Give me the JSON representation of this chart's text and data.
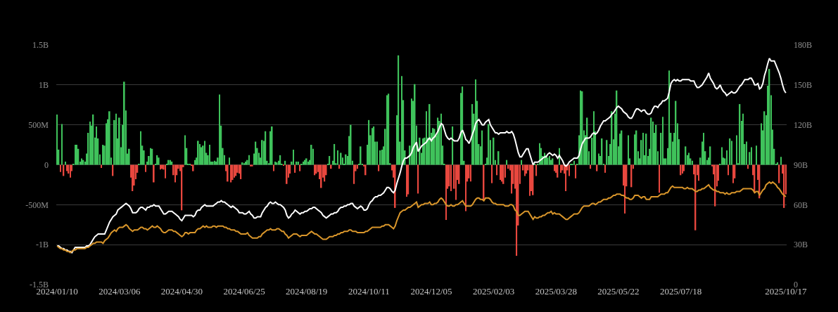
{
  "chart_data": {
    "type": "bar",
    "categories": [
      "2024/01/10",
      null,
      null,
      null,
      null,
      null,
      null,
      null,
      null,
      null,
      null,
      null,
      null,
      null,
      null,
      null,
      null,
      null,
      null,
      null,
      null,
      null,
      null,
      null,
      null,
      null,
      null,
      null,
      null,
      null,
      null,
      null,
      null,
      null,
      null,
      null,
      null,
      null,
      "2024/03/06",
      null,
      null,
      null,
      null,
      null,
      null,
      null,
      null,
      null,
      null,
      null,
      null,
      null,
      null,
      null,
      null,
      null,
      null,
      null,
      null,
      null,
      null,
      null,
      null,
      null,
      null,
      null,
      null,
      null,
      null,
      null,
      null,
      null,
      null,
      null,
      null,
      null,
      "2024/04/30",
      null,
      null,
      null,
      null,
      null,
      null,
      null,
      null,
      null,
      null,
      null,
      null,
      null,
      null,
      null,
      null,
      null,
      null,
      null,
      null,
      null,
      null,
      null,
      null,
      null,
      null,
      null,
      null,
      null,
      null,
      null,
      null,
      null,
      null,
      null,
      null,
      null,
      "2024/06/25",
      null,
      null,
      null,
      null,
      null,
      null,
      null,
      null,
      null,
      null,
      null,
      null,
      null,
      null,
      null,
      null,
      null,
      null,
      null,
      null,
      null,
      null,
      null,
      null,
      null,
      null,
      null,
      null,
      null,
      null,
      null,
      null,
      null,
      null,
      null,
      null,
      null,
      "2024/08/19",
      null,
      null,
      null,
      null,
      null,
      null,
      null,
      null,
      null,
      null,
      null,
      null,
      null,
      null,
      null,
      null,
      null,
      null,
      null,
      null,
      null,
      null,
      null,
      null,
      null,
      null,
      null,
      null,
      null,
      null,
      null,
      null,
      null,
      null,
      null,
      null,
      null,
      "2024/10/11",
      null,
      null,
      null,
      null,
      null,
      null,
      null,
      null,
      null,
      null,
      null,
      null,
      null,
      null,
      null,
      null,
      null,
      null,
      null,
      null,
      null,
      null,
      null,
      null,
      null,
      null,
      null,
      null,
      null,
      null,
      null,
      null,
      null,
      null,
      null,
      null,
      null,
      "2024/12/05",
      null,
      null,
      null,
      null,
      null,
      null,
      null,
      null,
      null,
      null,
      null,
      null,
      null,
      null,
      null,
      null,
      null,
      null,
      null,
      null,
      null,
      null,
      null,
      null,
      null,
      null,
      null,
      null,
      null,
      null,
      null,
      null,
      null,
      null,
      null,
      null,
      null,
      "2025/02/03",
      null,
      null,
      null,
      null,
      null,
      null,
      null,
      null,
      null,
      null,
      null,
      null,
      null,
      null,
      null,
      null,
      null,
      null,
      null,
      null,
      null,
      null,
      null,
      null,
      null,
      null,
      null,
      null,
      null,
      null,
      null,
      null,
      null,
      null,
      null,
      null,
      null,
      "2025/03/28",
      null,
      null,
      null,
      null,
      null,
      null,
      null,
      null,
      null,
      null,
      null,
      null,
      null,
      null,
      null,
      null,
      null,
      null,
      null,
      null,
      null,
      null,
      null,
      null,
      null,
      null,
      null,
      null,
      null,
      null,
      null,
      null,
      null,
      null,
      null,
      null,
      null,
      "2025/05/22",
      null,
      null,
      null,
      null,
      null,
      null,
      null,
      null,
      null,
      null,
      null,
      null,
      null,
      null,
      null,
      null,
      null,
      null,
      null,
      null,
      null,
      null,
      null,
      null,
      null,
      null,
      null,
      null,
      null,
      null,
      null,
      null,
      null,
      null,
      null,
      null,
      null,
      "2025/07/18",
      null,
      null,
      null,
      null,
      null,
      null,
      null,
      null,
      null,
      null,
      null,
      null,
      null,
      null,
      null,
      null,
      null,
      null,
      null,
      null,
      null,
      null,
      null,
      null,
      null,
      null,
      null,
      null,
      null,
      null,
      null,
      null,
      null,
      null,
      null,
      null,
      null,
      null,
      null,
      null,
      null,
      null,
      null,
      null,
      null,
      null,
      null,
      null,
      null,
      null,
      null,
      null,
      null,
      null,
      null,
      null,
      null,
      null,
      null,
      null,
      null,
      null,
      null,
      "2025/10/17"
    ],
    "series": [
      {
        "values": [
          630000000,
          190000000,
          -90000000,
          510000000,
          -140000000,
          40000000,
          -80000000,
          -110000000,
          -160000000,
          -80000000,
          10000000,
          250000000,
          250000000,
          200000000,
          40000000,
          80000000,
          60000000,
          40000000,
          140000000,
          400000000,
          540000000,
          490000000,
          630000000,
          340000000,
          480000000,
          330000000,
          130000000,
          -40000000,
          250000000,
          240000000,
          520000000,
          570000000,
          670000000,
          90000000,
          -140000000,
          560000000,
          640000000,
          330000000,
          590000000,
          220000000,
          500000000,
          1040000000,
          680000000,
          140000000,
          200000000,
          -160000000,
          -330000000,
          -260000000,
          -180000000,
          -100000000,
          10000000,
          420000000,
          240000000,
          180000000,
          -90000000,
          40000000,
          110000000,
          210000000,
          200000000,
          -220000000,
          10000000,
          120000000,
          90000000,
          -60000000,
          -50000000,
          -60000000,
          -170000000,
          10000000,
          60000000,
          60000000,
          40000000,
          -130000000,
          -220000000,
          -130000000,
          -50000000,
          -80000000,
          -570000000,
          -30000000,
          370000000,
          210000000,
          10000000,
          10000000,
          -10000000,
          -80000000,
          60000000,
          90000000,
          300000000,
          260000000,
          220000000,
          240000000,
          300000000,
          150000000,
          120000000,
          250000000,
          40000000,
          40000000,
          50000000,
          40000000,
          90000000,
          880000000,
          490000000,
          210000000,
          120000000,
          -80000000,
          -210000000,
          90000000,
          -220000000,
          -190000000,
          -160000000,
          -140000000,
          -100000000,
          -110000000,
          -180000000,
          30000000,
          20000000,
          40000000,
          60000000,
          120000000,
          -20000000,
          -20000000,
          140000000,
          290000000,
          210000000,
          150000000,
          90000000,
          310000000,
          300000000,
          420000000,
          50000000,
          20000000,
          420000000,
          480000000,
          -80000000,
          40000000,
          30000000,
          50000000,
          120000000,
          10000000,
          -10000000,
          50000000,
          -240000000,
          -160000000,
          -110000000,
          40000000,
          190000000,
          -100000000,
          40000000,
          40000000,
          -80000000,
          10000000,
          40000000,
          60000000,
          80000000,
          40000000,
          60000000,
          250000000,
          200000000,
          -130000000,
          -110000000,
          -90000000,
          -180000000,
          -290000000,
          -160000000,
          -210000000,
          -130000000,
          10000000,
          110000000,
          -50000000,
          50000000,
          260000000,
          20000000,
          180000000,
          -50000000,
          150000000,
          90000000,
          10000000,
          130000000,
          110000000,
          360000000,
          500000000,
          50000000,
          -240000000,
          -80000000,
          -50000000,
          10000000,
          230000000,
          10000000,
          -20000000,
          -130000000,
          250000000,
          560000000,
          370000000,
          460000000,
          480000000,
          290000000,
          290000000,
          -80000000,
          180000000,
          190000000,
          230000000,
          450000000,
          870000000,
          890000000,
          20000000,
          -70000000,
          -160000000,
          -540000000,
          620000000,
          1370000000,
          290000000,
          1110000000,
          810000000,
          180000000,
          -400000000,
          -370000000,
          240000000,
          830000000,
          800000000,
          1010000000,
          490000000,
          -360000000,
          340000000,
          150000000,
          330000000,
          340000000,
          670000000,
          340000000,
          760000000,
          400000000,
          460000000,
          450000000,
          370000000,
          590000000,
          550000000,
          640000000,
          240000000,
          10000000,
          -690000000,
          -300000000,
          -270000000,
          -330000000,
          480000000,
          -300000000,
          -440000000,
          -190000000,
          -240000000,
          900000000,
          980000000,
          50000000,
          -580000000,
          -210000000,
          -170000000,
          -210000000,
          760000000,
          640000000,
          1070000000,
          800000000,
          260000000,
          230000000,
          430000000,
          -450000000,
          10000000,
          90000000,
          510000000,
          310000000,
          -230000000,
          340000000,
          60000000,
          -130000000,
          170000000,
          -190000000,
          -210000000,
          -240000000,
          -160000000,
          60000000,
          -50000000,
          -70000000,
          -360000000,
          -240000000,
          -300000000,
          -1140000000,
          -760000000,
          -240000000,
          60000000,
          -70000000,
          -140000000,
          -110000000,
          -70000000,
          -390000000,
          -330000000,
          -380000000,
          10000000,
          -140000000,
          10000000,
          270000000,
          210000000,
          110000000,
          150000000,
          120000000,
          90000000,
          110000000,
          60000000,
          80000000,
          -80000000,
          -100000000,
          -160000000,
          210000000,
          -100000000,
          -70000000,
          -110000000,
          -330000000,
          -70000000,
          -140000000,
          10000000,
          10000000,
          50000000,
          -170000000,
          10000000,
          370000000,
          930000000,
          920000000,
          430000000,
          370000000,
          590000000,
          170000000,
          -50000000,
          340000000,
          670000000,
          420000000,
          -80000000,
          140000000,
          110000000,
          330000000,
          10000000,
          -100000000,
          310000000,
          110000000,
          260000000,
          670000000,
          320000000,
          640000000,
          930000000,
          230000000,
          390000000,
          430000000,
          -260000000,
          -610000000,
          -270000000,
          370000000,
          80000000,
          -280000000,
          -50000000,
          380000000,
          430000000,
          170000000,
          80000000,
          310000000,
          400000000,
          120000000,
          390000000,
          110000000,
          200000000,
          590000000,
          540000000,
          400000000,
          500000000,
          170000000,
          -350000000,
          400000000,
          600000000,
          80000000,
          80000000,
          210000000,
          1180000000,
          400000000,
          290000000,
          400000000,
          800000000,
          520000000,
          320000000,
          -130000000,
          -110000000,
          -80000000,
          230000000,
          120000000,
          150000000,
          80000000,
          50000000,
          -120000000,
          -820000000,
          -130000000,
          -200000000,
          90000000,
          290000000,
          400000000,
          170000000,
          60000000,
          90000000,
          230000000,
          -20000000,
          -120000000,
          -520000000,
          -270000000,
          -200000000,
          10000000,
          220000000,
          90000000,
          80000000,
          180000000,
          -130000000,
          330000000,
          300000000,
          -230000000,
          -170000000,
          370000000,
          20000000,
          760000000,
          550000000,
          640000000,
          260000000,
          290000000,
          -50000000,
          160000000,
          220000000,
          -130000000,
          -350000000,
          240000000,
          -190000000,
          -420000000,
          520000000,
          430000000,
          670000000,
          620000000,
          990000000,
          1200000000,
          870000000,
          440000000,
          200000000,
          10000000,
          30000000,
          -230000000,
          100000000,
          -110000000,
          -540000000,
          -370000000
        ],
        "colors": [
          "#3fc25b",
          "#3fc25b",
          "#e8473e",
          "#3fc25b",
          "#e8473e",
          "#3fc25b",
          "#e8473e",
          "#e8473e",
          "#e8473e",
          "#e8473e",
          "#3fc25b",
          "#3fc25b",
          "#3fc25b",
          "#3fc25b",
          "#3fc25b",
          "#3fc25b",
          "#3fc25b",
          "#3fc25b",
          "#3fc25b",
          "#3fc25b",
          "#3fc25b",
          "#3fc25b",
          "#3fc25b",
          "#3fc25b",
          "#3fc25b",
          "#3fc25b",
          "#3fc25b",
          "#e8473e",
          "#3fc25b",
          "#3fc25b",
          "#3fc25b",
          "#3fc25b",
          "#3fc25b",
          "#3fc25b",
          "#e8473e",
          "#3fc25b",
          "#3fc25b",
          "#3fc25b",
          "#3fc25b",
          "#3fc25b",
          "#3fc25b",
          "#3fc25b",
          "#3fc25b",
          "#3fc25b",
          "#3fc25b",
          "#e8473e",
          "#e8473e",
          "#e8473e",
          "#e8473e",
          "#e8473e",
          "#3fc25b",
          "#3fc25b",
          "#3fc25b",
          "#3fc25b",
          "#e8473e",
          "#3fc25b",
          "#3fc25b",
          "#3fc25b",
          "#3fc25b",
          "#e8473e",
          "#3fc25b",
          "#3fc25b",
          "#3fc25b",
          "#e8473e",
          "#e8473e",
          "#e8473e",
          "#e8473e",
          "#3fc25b",
          "#3fc25b",
          "#3fc25b",
          "#3fc25b",
          "#e8473e",
          "#e8473e",
          "#e8473e",
          "#e8473e",
          "#e8473e",
          "#e8473e",
          "#e8473e",
          "#3fc25b",
          "#3fc25b",
          "#3fc25b",
          "#3fc25b",
          "#e8473e",
          "#e8473e",
          "#3fc25b",
          "#3fc25b",
          "#3fc25b",
          "#3fc25b",
          "#3fc25b",
          "#3fc25b",
          "#3fc25b",
          "#3fc25b",
          "#3fc25b",
          "#3fc25b",
          "#3fc25b",
          "#3fc25b",
          "#3fc25b",
          "#3fc25b",
          "#3fc25b",
          "#3fc25b",
          "#3fc25b",
          "#3fc25b",
          "#3fc25b",
          "#e8473e",
          "#e8473e",
          "#3fc25b",
          "#e8473e",
          "#e8473e",
          "#e8473e",
          "#e8473e",
          "#e8473e",
          "#e8473e",
          "#e8473e",
          "#3fc25b",
          "#3fc25b",
          "#3fc25b",
          "#3fc25b",
          "#3fc25b",
          "#e8473e",
          "#e8473e",
          "#3fc25b",
          "#3fc25b",
          "#3fc25b",
          "#3fc25b",
          "#3fc25b",
          "#3fc25b",
          "#3fc25b",
          "#3fc25b",
          "#3fc25b",
          "#3fc25b",
          "#3fc25b",
          "#3fc25b",
          "#e8473e",
          "#3fc25b",
          "#3fc25b",
          "#3fc25b",
          "#3fc25b",
          "#3fc25b",
          "#e8473e",
          "#3fc25b",
          "#e8473e",
          "#e8473e",
          "#e8473e",
          "#3fc25b",
          "#3fc25b",
          "#e8473e",
          "#3fc25b",
          "#3fc25b",
          "#e8473e",
          "#3fc25b",
          "#3fc25b",
          "#3fc25b",
          "#3fc25b",
          "#3fc25b",
          "#3fc25b",
          "#3fc25b",
          "#3fc25b",
          "#e8473e",
          "#e8473e",
          "#e8473e",
          "#e8473e",
          "#e8473e",
          "#e8473e",
          "#e8473e",
          "#e8473e",
          "#3fc25b",
          "#3fc25b",
          "#e8473e",
          "#3fc25b",
          "#3fc25b",
          "#3fc25b",
          "#3fc25b",
          "#e8473e",
          "#3fc25b",
          "#3fc25b",
          "#3fc25b",
          "#3fc25b",
          "#3fc25b",
          "#3fc25b",
          "#3fc25b",
          "#3fc25b",
          "#e8473e",
          "#e8473e",
          "#e8473e",
          "#3fc25b",
          "#3fc25b",
          "#3fc25b",
          "#e8473e",
          "#e8473e",
          "#3fc25b",
          "#3fc25b",
          "#3fc25b",
          "#3fc25b",
          "#3fc25b",
          "#3fc25b",
          "#3fc25b",
          "#e8473e",
          "#3fc25b",
          "#3fc25b",
          "#3fc25b",
          "#3fc25b",
          "#3fc25b",
          "#3fc25b",
          "#3fc25b",
          "#e8473e",
          "#e8473e",
          "#e8473e",
          "#3fc25b",
          "#3fc25b",
          "#3fc25b",
          "#3fc25b",
          "#3fc25b",
          "#3fc25b",
          "#e8473e",
          "#e8473e",
          "#3fc25b",
          "#3fc25b",
          "#3fc25b",
          "#3fc25b",
          "#3fc25b",
          "#e8473e",
          "#3fc25b",
          "#3fc25b",
          "#3fc25b",
          "#3fc25b",
          "#3fc25b",
          "#3fc25b",
          "#3fc25b",
          "#3fc25b",
          "#3fc25b",
          "#3fc25b",
          "#3fc25b",
          "#3fc25b",
          "#3fc25b",
          "#3fc25b",
          "#3fc25b",
          "#3fc25b",
          "#e8473e",
          "#e8473e",
          "#e8473e",
          "#e8473e",
          "#3fc25b",
          "#e8473e",
          "#e8473e",
          "#e8473e",
          "#e8473e",
          "#3fc25b",
          "#3fc25b",
          "#3fc25b",
          "#e8473e",
          "#e8473e",
          "#e8473e",
          "#e8473e",
          "#3fc25b",
          "#3fc25b",
          "#3fc25b",
          "#3fc25b",
          "#3fc25b",
          "#3fc25b",
          "#3fc25b",
          "#e8473e",
          "#3fc25b",
          "#3fc25b",
          "#3fc25b",
          "#3fc25b",
          "#e8473e",
          "#3fc25b",
          "#3fc25b",
          "#e8473e",
          "#3fc25b",
          "#e8473e",
          "#e8473e",
          "#e8473e",
          "#e8473e",
          "#3fc25b",
          "#e8473e",
          "#e8473e",
          "#e8473e",
          "#e8473e",
          "#e8473e",
          "#e8473e",
          "#e8473e",
          "#e8473e",
          "#3fc25b",
          "#e8473e",
          "#e8473e",
          "#e8473e",
          "#e8473e",
          "#e8473e",
          "#e8473e",
          "#e8473e",
          "#3fc25b",
          "#e8473e",
          "#3fc25b",
          "#3fc25b",
          "#3fc25b",
          "#3fc25b",
          "#3fc25b",
          "#3fc25b",
          "#3fc25b",
          "#3fc25b",
          "#3fc25b",
          "#3fc25b",
          "#e8473e",
          "#e8473e",
          "#e8473e",
          "#3fc25b",
          "#e8473e",
          "#e8473e",
          "#e8473e",
          "#e8473e",
          "#e8473e",
          "#e8473e",
          "#3fc25b",
          "#3fc25b",
          "#3fc25b",
          "#e8473e",
          "#3fc25b",
          "#3fc25b",
          "#3fc25b",
          "#3fc25b",
          "#3fc25b",
          "#3fc25b",
          "#3fc25b",
          "#3fc25b",
          "#e8473e",
          "#3fc25b",
          "#3fc25b",
          "#3fc25b",
          "#e8473e",
          "#3fc25b",
          "#3fc25b",
          "#3fc25b",
          "#3fc25b",
          "#e8473e",
          "#3fc25b",
          "#3fc25b",
          "#3fc25b",
          "#3fc25b",
          "#3fc25b",
          "#3fc25b",
          "#3fc25b",
          "#3fc25b",
          "#3fc25b",
          "#3fc25b",
          "#e8473e",
          "#e8473e",
          "#e8473e",
          "#3fc25b",
          "#3fc25b",
          "#e8473e",
          "#e8473e",
          "#3fc25b",
          "#3fc25b",
          "#3fc25b",
          "#3fc25b",
          "#3fc25b",
          "#3fc25b",
          "#3fc25b",
          "#3fc25b",
          "#3fc25b",
          "#3fc25b",
          "#3fc25b",
          "#3fc25b",
          "#3fc25b",
          "#3fc25b",
          "#3fc25b",
          "#e8473e",
          "#3fc25b",
          "#3fc25b",
          "#3fc25b",
          "#3fc25b",
          "#3fc25b",
          "#3fc25b",
          "#3fc25b",
          "#3fc25b",
          "#3fc25b",
          "#3fc25b",
          "#3fc25b",
          "#3fc25b",
          "#e8473e",
          "#e8473e",
          "#e8473e",
          "#3fc25b",
          "#3fc25b",
          "#3fc25b",
          "#3fc25b",
          "#3fc25b",
          "#e8473e",
          "#e8473e",
          "#e8473e",
          "#e8473e",
          "#3fc25b",
          "#3fc25b",
          "#3fc25b",
          "#3fc25b",
          "#3fc25b",
          "#3fc25b",
          "#3fc25b",
          "#e8473e",
          "#e8473e",
          "#e8473e",
          "#e8473e",
          "#e8473e",
          "#3fc25b",
          "#3fc25b",
          "#3fc25b",
          "#3fc25b",
          "#3fc25b",
          "#e8473e",
          "#3fc25b",
          "#3fc25b",
          "#e8473e",
          "#e8473e",
          "#3fc25b",
          "#3fc25b",
          "#3fc25b",
          "#3fc25b",
          "#3fc25b",
          "#3fc25b",
          "#3fc25b",
          "#e8473e",
          "#3fc25b",
          "#3fc25b",
          "#e8473e",
          "#e8473e",
          "#3fc25b",
          "#e8473e",
          "#e8473e",
          "#3fc25b",
          "#3fc25b",
          "#3fc25b",
          "#3fc25b",
          "#3fc25b",
          "#3fc25b",
          "#3fc25b",
          "#3fc25b",
          "#3fc25b",
          "#3fc25b",
          "#3fc25b",
          "#e8473e",
          "#3fc25b",
          "#e8473e",
          "#e8473e",
          "#e8473e"
        ]
      },
      {
        "type": "line",
        "axis": "y2",
        "color": "#ffffff",
        "values": [
          29,
          29,
          28,
          27,
          27,
          26,
          26,
          25,
          25,
          24,
          26,
          28,
          28,
          28,
          28,
          28,
          28,
          28,
          29,
          29,
          30,
          32,
          34,
          36,
          37,
          38,
          38,
          38,
          38,
          38,
          41,
          44,
          47,
          49,
          51,
          52,
          53,
          56,
          57,
          58,
          59,
          60,
          61,
          60,
          59,
          57,
          54,
          54,
          54,
          55,
          57,
          58,
          58,
          57,
          56,
          58,
          58,
          59,
          59,
          60,
          59,
          59,
          59,
          57,
          55,
          53,
          53,
          54,
          55,
          55,
          55,
          54,
          53,
          52,
          51,
          49,
          48,
          50,
          52,
          52,
          52,
          52,
          52,
          51,
          52,
          55,
          56,
          56,
          58,
          59,
          60,
          59,
          59,
          59,
          59,
          59,
          60,
          61,
          62,
          62,
          63,
          62,
          62,
          61,
          60,
          59,
          58,
          59,
          58,
          57,
          56,
          54,
          54,
          54,
          53,
          53,
          54,
          55,
          53,
          52,
          50,
          50,
          51,
          51,
          51,
          54,
          56,
          58,
          59,
          61,
          62,
          61,
          61,
          62,
          61,
          60,
          60,
          59,
          58,
          56,
          52,
          50,
          51,
          53,
          54,
          56,
          55,
          54,
          53,
          54,
          54,
          55,
          55,
          56,
          57,
          57,
          58,
          58,
          57,
          56,
          55,
          54,
          52,
          51,
          50,
          51,
          52,
          53,
          53,
          54,
          54,
          55,
          57,
          58,
          58,
          59,
          59,
          60,
          60,
          61,
          61,
          59,
          58,
          57,
          58,
          59,
          58,
          56,
          56,
          57,
          60,
          62,
          63,
          65,
          66,
          66,
          67,
          67,
          68,
          69,
          71,
          73,
          73,
          72,
          70,
          69,
          71,
          76,
          80,
          84,
          89,
          93,
          95,
          95,
          96,
          97,
          99,
          103,
          105,
          107,
          100,
          102,
          104,
          105,
          106,
          107,
          109,
          110,
          108,
          110,
          111,
          113,
          115,
          118,
          121,
          120,
          116,
          112,
          110,
          109,
          110,
          109,
          108,
          108,
          108,
          110,
          114,
          116,
          113,
          109,
          108,
          106,
          109,
          113,
          116,
          121,
          123,
          124,
          122,
          120,
          120,
          122,
          123,
          124,
          120,
          118,
          116,
          114,
          114,
          113,
          114,
          114,
          114,
          114,
          115,
          114,
          114,
          115,
          113,
          109,
          104,
          99,
          96,
          96,
          98,
          100,
          102,
          102,
          98,
          94,
          90,
          92,
          92,
          92,
          93,
          94,
          95,
          96,
          96,
          98,
          99,
          98,
          97,
          98,
          97,
          95,
          97,
          95,
          93,
          90,
          89,
          90,
          92,
          93,
          94,
          95,
          95,
          95,
          97,
          102,
          106,
          108,
          110,
          110,
          110,
          111,
          113,
          114,
          113,
          114,
          116,
          119,
          121,
          123,
          123,
          124,
          125,
          126,
          128,
          129,
          131,
          133,
          134,
          133,
          132,
          130,
          129,
          128,
          126,
          125,
          125,
          127,
          130,
          132,
          132,
          131,
          130,
          131,
          131,
          129,
          128,
          128,
          129,
          132,
          134,
          134,
          133,
          135,
          136,
          138,
          138,
          139,
          140,
          145,
          151,
          153,
          154,
          153,
          154,
          153,
          153,
          154,
          154,
          154,
          154,
          154,
          153,
          153,
          153,
          150,
          148,
          148,
          149,
          150,
          152,
          154,
          156,
          159,
          155,
          153,
          151,
          148,
          147,
          148,
          150,
          147,
          145,
          144,
          142,
          143,
          144,
          145,
          144,
          144,
          145,
          147,
          149,
          150,
          152,
          154,
          154,
          154,
          155,
          155,
          153,
          150,
          150,
          151,
          147,
          148,
          151,
          157,
          161,
          166,
          170,
          168,
          168,
          168,
          165,
          162,
          159,
          155,
          150,
          146,
          144
        ]
      },
      {
        "type": "line",
        "axis": "y2",
        "color": "#d9962b",
        "values": [
          29,
          28,
          27,
          27,
          26,
          26,
          25,
          25,
          24,
          25,
          26,
          26,
          27,
          27,
          27,
          27,
          27,
          27,
          28,
          28,
          29,
          30,
          31,
          31,
          32,
          32,
          32,
          32,
          31,
          33,
          34,
          35,
          37,
          39,
          40,
          41,
          40,
          42,
          43,
          43,
          43,
          44,
          45,
          44,
          42,
          41,
          40,
          41,
          41,
          41,
          42,
          43,
          43,
          42,
          42,
          41,
          42,
          43,
          44,
          43,
          43,
          44,
          43,
          42,
          40,
          39,
          39,
          40,
          41,
          41,
          41,
          40,
          40,
          39,
          38,
          37,
          36,
          37,
          39,
          39,
          38,
          39,
          39,
          39,
          39,
          41,
          42,
          42,
          43,
          44,
          43,
          44,
          43,
          43,
          43,
          44,
          44,
          43,
          44,
          44,
          44,
          44,
          43,
          43,
          42,
          42,
          41,
          41,
          41,
          40,
          40,
          39,
          38,
          38,
          38,
          38,
          39,
          37,
          36,
          35,
          35,
          35,
          35,
          36,
          36,
          38,
          39,
          40,
          41,
          41,
          42,
          41,
          41,
          41,
          42,
          42,
          41,
          40,
          40,
          38,
          37,
          35,
          36,
          37,
          38,
          38,
          38,
          37,
          36,
          37,
          37,
          37,
          37,
          38,
          39,
          40,
          39,
          38,
          38,
          37,
          36,
          35,
          34,
          34,
          34,
          35,
          36,
          36,
          36,
          37,
          37,
          38,
          38,
          39,
          39,
          40,
          40,
          40,
          41,
          41,
          40,
          40,
          40,
          39,
          39,
          39,
          39,
          39,
          40,
          40,
          41,
          42,
          43,
          43,
          43,
          43,
          43,
          43,
          44,
          44,
          45,
          45,
          45,
          44,
          43,
          42,
          44,
          48,
          51,
          54,
          55,
          56,
          56,
          57,
          58,
          58,
          59,
          60,
          61,
          62,
          58,
          59,
          60,
          60,
          61,
          61,
          61,
          62,
          60,
          60,
          61,
          61,
          62,
          64,
          65,
          64,
          62,
          60,
          59,
          59,
          60,
          59,
          59,
          60,
          60,
          61,
          62,
          63,
          61,
          59,
          59,
          59,
          59,
          60,
          62,
          64,
          65,
          65,
          64,
          64,
          63,
          65,
          65,
          65,
          64,
          62,
          61,
          61,
          60,
          60,
          60,
          60,
          60,
          59,
          59,
          59,
          60,
          60,
          59,
          56,
          55,
          52,
          52,
          53,
          54,
          55,
          55,
          55,
          53,
          51,
          49,
          51,
          50,
          50,
          51,
          51,
          52,
          52,
          53,
          54,
          54,
          55,
          53,
          54,
          53,
          53,
          53,
          52,
          51,
          50,
          49,
          49,
          50,
          51,
          52,
          53,
          53,
          53,
          54,
          56,
          58,
          59,
          59,
          59,
          59,
          60,
          61,
          61,
          60,
          61,
          62,
          62,
          63,
          64,
          64,
          64,
          65,
          65,
          66,
          67,
          67,
          68,
          68,
          68,
          67,
          67,
          66,
          65,
          65,
          64,
          64,
          65,
          67,
          67,
          67,
          66,
          65,
          66,
          66,
          64,
          64,
          64,
          66,
          66,
          66,
          66,
          66,
          67,
          68,
          68,
          68,
          69,
          69,
          71,
          73,
          74,
          73,
          73,
          73,
          73,
          73,
          73,
          72,
          72,
          73,
          72,
          72,
          72,
          71,
          70,
          70,
          71,
          71,
          72,
          72,
          73,
          74,
          75,
          73,
          72,
          71,
          71,
          70,
          70,
          69,
          69,
          69,
          68,
          69,
          68,
          68,
          69,
          69,
          69,
          70,
          70,
          70,
          71,
          72,
          72,
          72,
          72,
          72,
          72,
          71,
          69,
          70,
          70,
          67,
          69,
          71,
          72,
          75,
          76,
          77,
          76,
          77,
          76,
          75,
          73,
          72,
          70,
          68,
          67,
          66
        ]
      }
    ],
    "ylim": [
      -1500000000,
      1500000000
    ],
    "yticks": [
      {
        "value": -1500000000,
        "label": "-1.5B"
      },
      {
        "value": -1000000000,
        "label": "-1B"
      },
      {
        "value": -500000000,
        "label": "-500M"
      },
      0,
      {
        "value": 500000000,
        "label": "500M"
      },
      {
        "value": 1000000000,
        "label": "1B"
      },
      {
        "value": 1500000000,
        "label": "1.5B"
      }
    ],
    "y2lim": [
      0,
      180
    ],
    "y2ticks": [
      0,
      {
        "value": 30,
        "label": "30B"
      },
      {
        "value": 60,
        "label": "60B"
      },
      {
        "value": 90,
        "label": "90B"
      },
      {
        "value": 120,
        "label": "120B"
      },
      {
        "value": 150,
        "label": "150B"
      },
      {
        "value": 180,
        "label": "180B"
      }
    ],
    "grid": "y"
  }
}
